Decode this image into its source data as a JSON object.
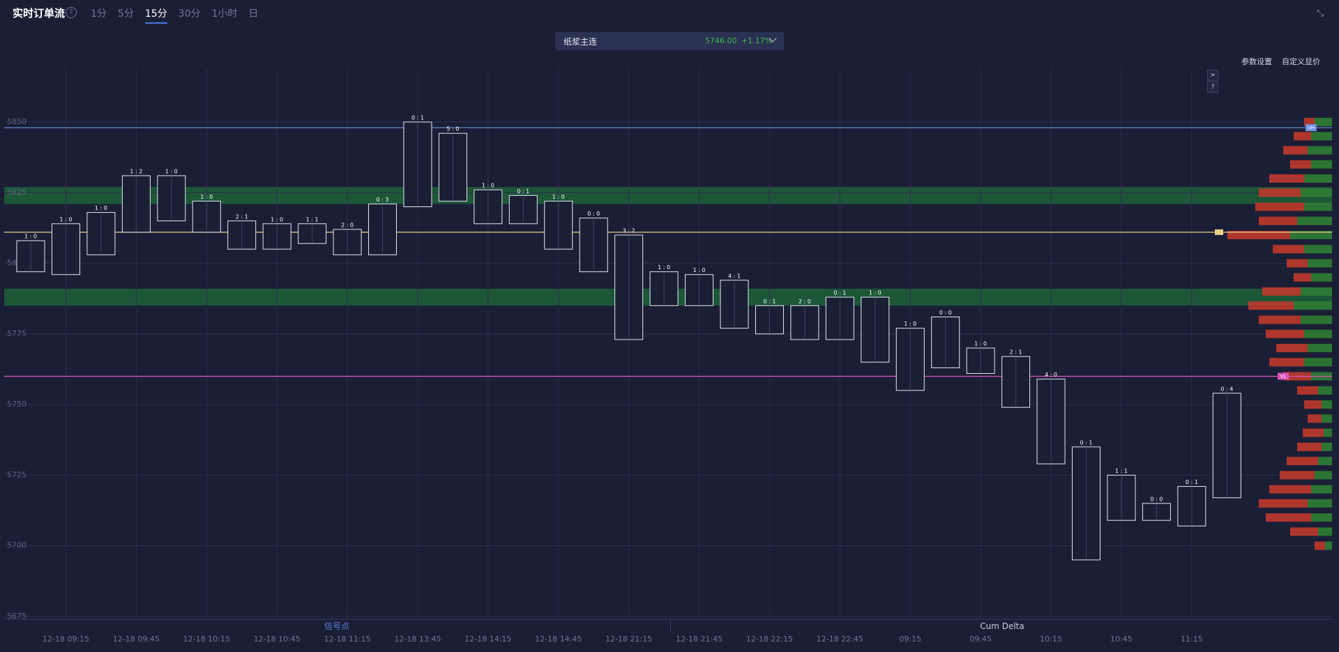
{
  "header": {
    "title": "实时订单流",
    "help": "?",
    "intervals": [
      "1分",
      "5分",
      "15分",
      "30分",
      "1小时",
      "日"
    ],
    "active_index": 2
  },
  "instrument": {
    "name": "纸浆主连",
    "price": "5746.00",
    "change": "+1.17%"
  },
  "toolbar": [
    "参数设置",
    "自定义显价"
  ],
  "side_buttons": [
    ">",
    "?"
  ],
  "tabs": [
    "信号点",
    "Cum Delta"
  ],
  "chart_data": {
    "type": "footprint",
    "categories": [
      null,
      "12-18 09:15",
      null,
      "12-18 09:45",
      null,
      "12-18 10:15",
      null,
      "12-18 10:45",
      null,
      "12-18 11:15",
      null,
      "12-18 13:45",
      null,
      "12-18 14:15",
      null,
      "12-18 14:45",
      null,
      "12-18 21:15",
      null,
      "12-18 21:45",
      null,
      "12-18 22:15",
      null,
      "12-18 22:45",
      null,
      "09:15",
      null,
      "09:45",
      null,
      "10:15",
      null,
      "10:45",
      null,
      "11:15",
      null
    ],
    "headers": [
      "1 : 0",
      "1 : 0",
      "1 : 0",
      "1 : 2",
      "1 : 0",
      "1 : 0",
      "2 : 1",
      "1 : 0",
      "1 : 1",
      "2 : 0",
      "0 : 3",
      "0 : 1",
      "5 : 0",
      "1 : 0",
      "0 : 1",
      "1 : 0",
      "0 : 0",
      "3 : 2",
      "1 : 0",
      "1 : 0",
      "4 : 1",
      "0 : 1",
      "2 : 0",
      "0 : 1",
      "1 : 0",
      "1 : 0",
      "0 : 0",
      "1 : 0",
      "2 : 1",
      "4 : 0",
      "0 : 1",
      "1 : 1",
      "0 : 0",
      "0 : 1",
      "0 : 4"
    ],
    "high": [
      5808,
      5814,
      5818,
      5831,
      5831,
      5822,
      5815,
      5814,
      5814,
      5812,
      5821,
      5850,
      5846,
      5826,
      5824,
      5822,
      5816,
      5810,
      5797,
      5796,
      5794,
      5785,
      5785,
      5788,
      5788,
      5777,
      5781,
      5770,
      5767,
      5759,
      5735,
      5725,
      5715,
      5721,
      5754
    ],
    "low": [
      5797,
      5796,
      5803,
      5811,
      5815,
      5811,
      5805,
      5805,
      5807,
      5803,
      5803,
      5820,
      5822,
      5814,
      5814,
      5805,
      5797,
      5773,
      5785,
      5785,
      5777,
      5775,
      5773,
      5773,
      5765,
      5755,
      5763,
      5761,
      5749,
      5729,
      5695,
      5709,
      5709,
      5707,
      5717
    ],
    "box_color": "#e6e8f0",
    "ylim": [
      5674,
      5869
    ],
    "yticks": [
      5675,
      5700,
      5725,
      5750,
      5775,
      5800,
      5825,
      5850
    ],
    "grid": true,
    "levels": [
      {
        "name": "VH",
        "value": 5848,
        "color": "#6d8fe0"
      },
      {
        "value": 5811,
        "color": "#e8d08a"
      },
      {
        "name": "VL",
        "value": 5760,
        "color": "#d855b8"
      }
    ],
    "zones": [
      [
        5821,
        5827
      ],
      [
        5785,
        5791
      ]
    ],
    "zone_color": "#1f6b3a",
    "profile": {
      "prices": [
        5850,
        5845,
        5840,
        5835,
        5830,
        5825,
        5820,
        5815,
        5810,
        5805,
        5800,
        5795,
        5790,
        5785,
        5780,
        5775,
        5770,
        5765,
        5760,
        5755,
        5750,
        5745,
        5740,
        5735,
        5730,
        5725,
        5720,
        5715,
        5710,
        5705,
        5700
      ],
      "series": [
        {
          "color": "#2f7d34",
          "values": [
            25,
            30,
            35,
            30,
            40,
            45,
            40,
            50,
            60,
            40,
            35,
            30,
            45,
            55,
            45,
            40,
            35,
            40,
            30,
            20,
            15,
            15,
            12,
            15,
            20,
            25,
            30,
            35,
            30,
            20,
            10
          ]
        },
        {
          "color": "#c0392b",
          "values": [
            15,
            25,
            35,
            30,
            50,
            60,
            70,
            55,
            90,
            45,
            30,
            25,
            55,
            65,
            60,
            55,
            45,
            50,
            40,
            30,
            25,
            20,
            30,
            35,
            45,
            50,
            60,
            70,
            65,
            40,
            15
          ]
        }
      ]
    }
  }
}
